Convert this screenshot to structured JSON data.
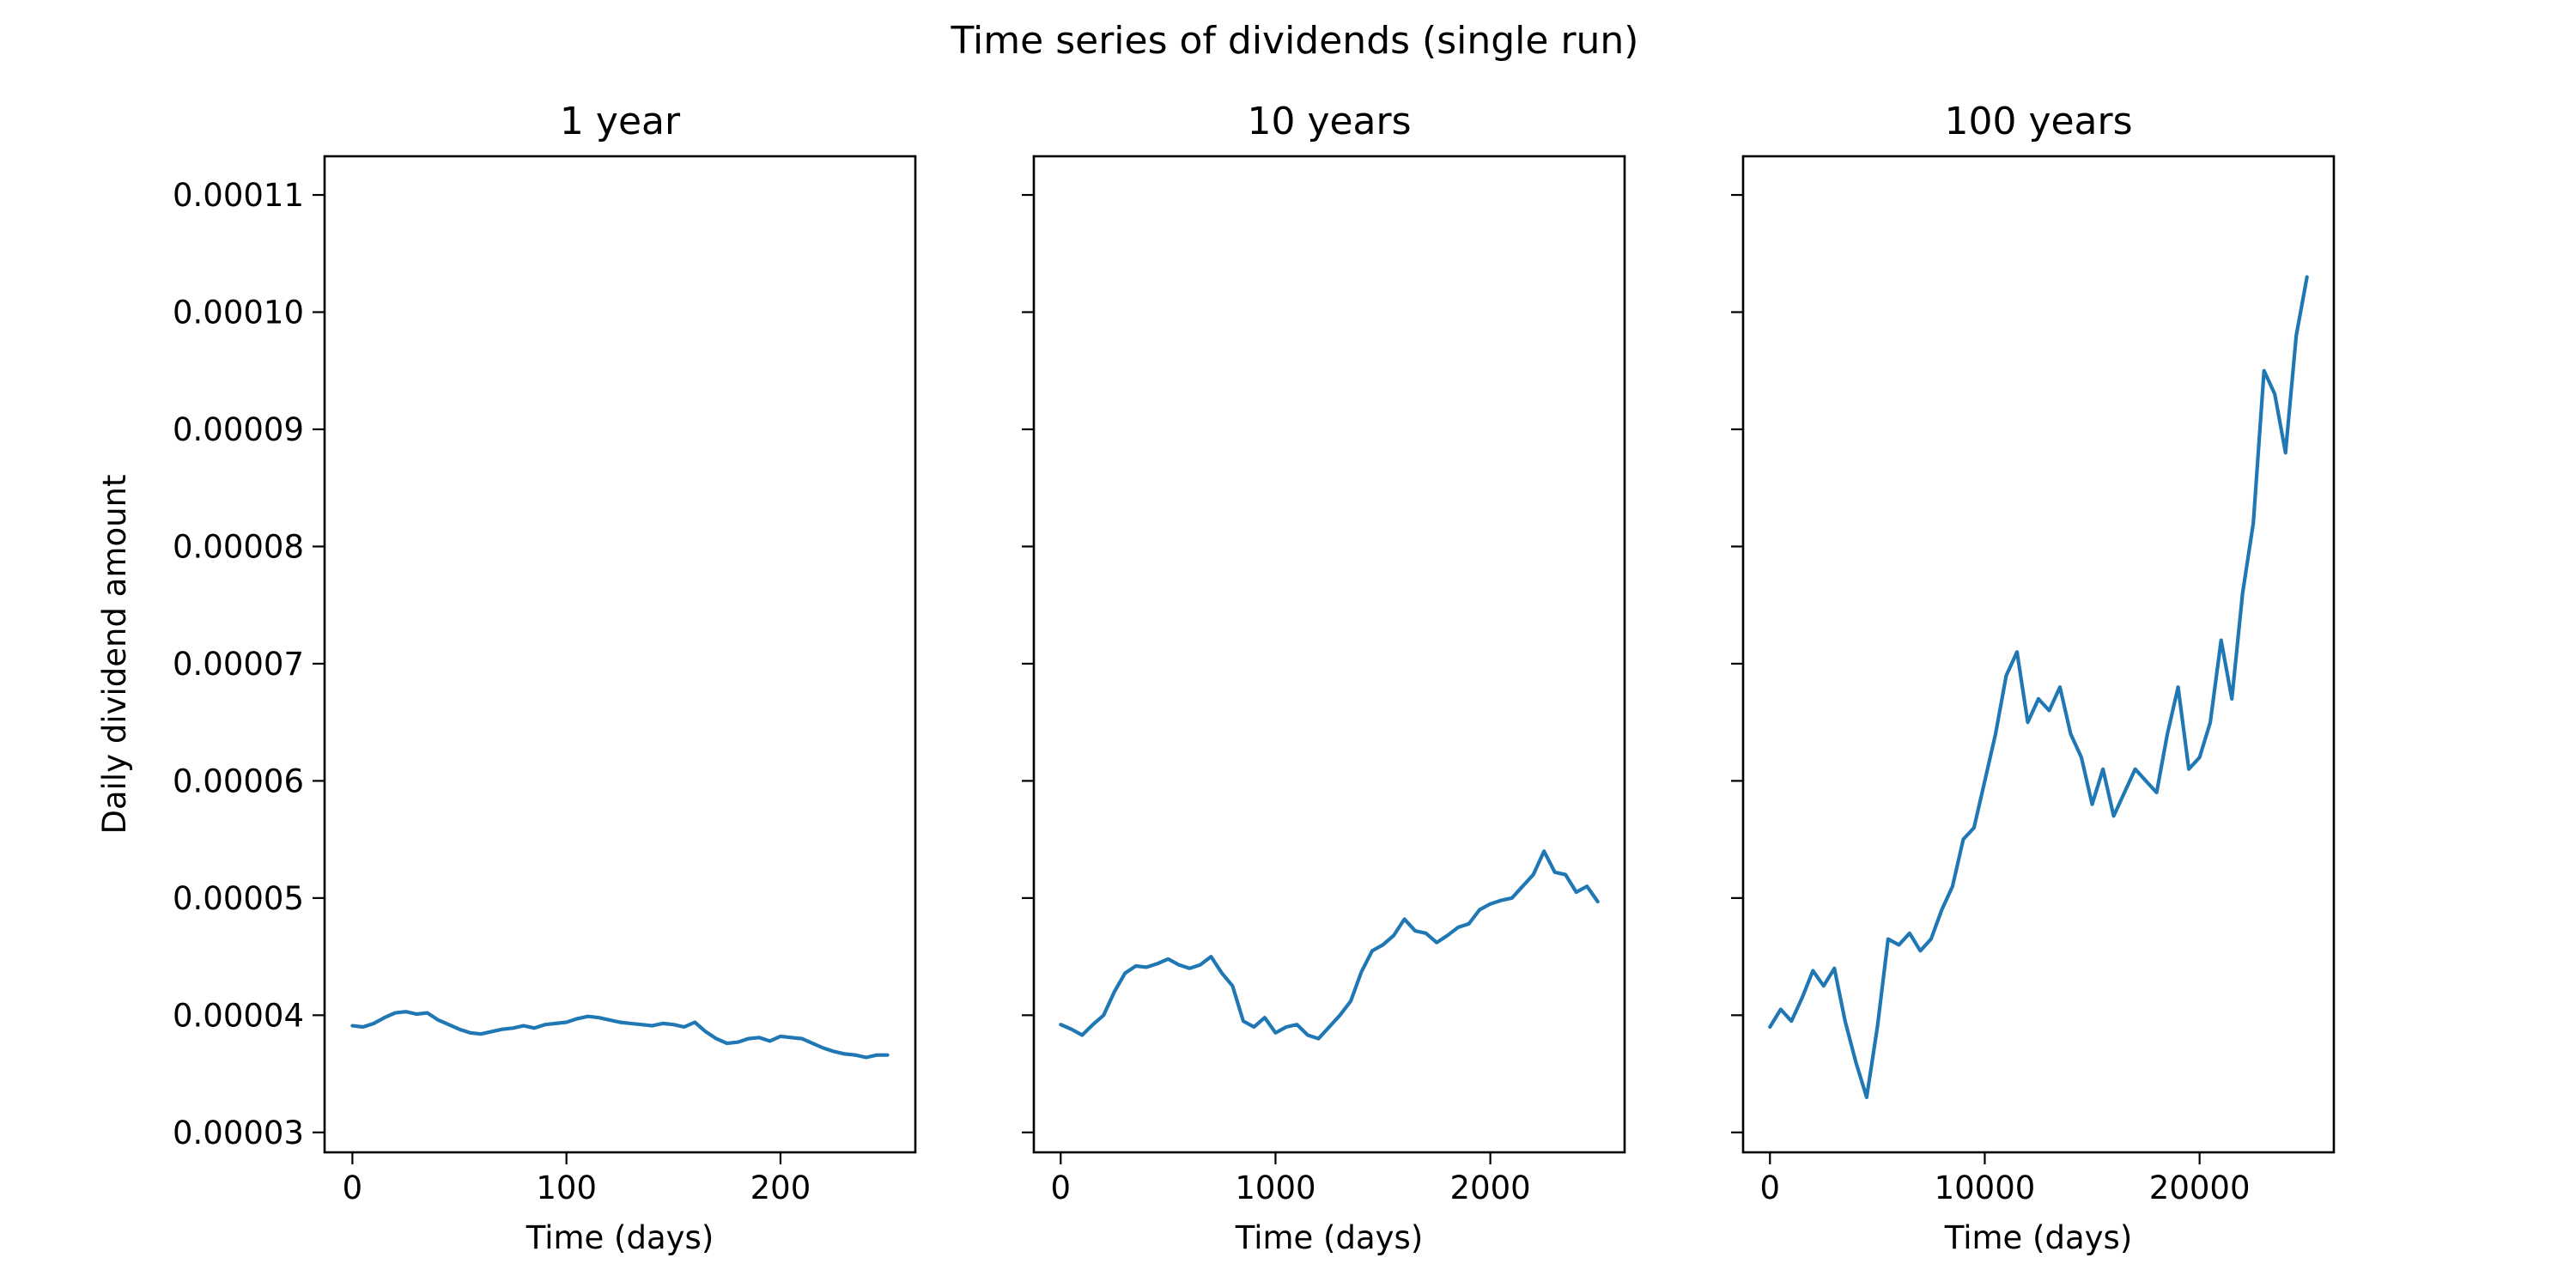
{
  "figure": {
    "title": "Time series of dividends (single run)"
  },
  "chart_data": [
    {
      "type": "line",
      "title": "1 year",
      "xlabel": "Time (days)",
      "ylabel": "Daily dividend amount",
      "xlim": [
        -13,
        263
      ],
      "ylim": [
        2.83e-05,
        0.0001133
      ],
      "xticks": [
        0,
        100,
        200
      ],
      "xtick_labels": [
        "0",
        "100",
        "200"
      ],
      "yticks": [
        3e-05,
        4e-05,
        5e-05,
        6e-05,
        7e-05,
        8e-05,
        9e-05,
        0.0001,
        0.00011
      ],
      "ytick_labels": [
        "0.00003",
        "0.00004",
        "0.00005",
        "0.00006",
        "0.00007",
        "0.00008",
        "0.00009",
        "0.00010",
        "0.00011"
      ],
      "grid": false,
      "series": [
        {
          "x": [
            0,
            5,
            10,
            15,
            20,
            25,
            30,
            35,
            40,
            45,
            50,
            55,
            60,
            65,
            70,
            75,
            80,
            85,
            90,
            95,
            100,
            105,
            110,
            115,
            120,
            125,
            130,
            135,
            140,
            145,
            150,
            155,
            160,
            165,
            170,
            175,
            180,
            185,
            190,
            195,
            200,
            205,
            210,
            215,
            220,
            225,
            230,
            235,
            240,
            245,
            250
          ],
          "values": [
            3.91e-05,
            3.9e-05,
            3.93e-05,
            3.98e-05,
            4.02e-05,
            4.03e-05,
            4.01e-05,
            4.02e-05,
            3.96e-05,
            3.92e-05,
            3.88e-05,
            3.85e-05,
            3.84e-05,
            3.86e-05,
            3.88e-05,
            3.89e-05,
            3.91e-05,
            3.89e-05,
            3.92e-05,
            3.93e-05,
            3.94e-05,
            3.97e-05,
            3.99e-05,
            3.98e-05,
            3.96e-05,
            3.94e-05,
            3.93e-05,
            3.92e-05,
            3.91e-05,
            3.93e-05,
            3.92e-05,
            3.9e-05,
            3.94e-05,
            3.86e-05,
            3.8e-05,
            3.76e-05,
            3.77e-05,
            3.8e-05,
            3.81e-05,
            3.78e-05,
            3.82e-05,
            3.81e-05,
            3.8e-05,
            3.76e-05,
            3.72e-05,
            3.69e-05,
            3.67e-05,
            3.66e-05,
            3.64e-05,
            3.66e-05,
            3.66e-05
          ]
        }
      ]
    },
    {
      "type": "line",
      "title": "10 years",
      "xlabel": "Time (days)",
      "ylabel": "",
      "xlim": [
        -125,
        2625
      ],
      "ylim": [
        2.83e-05,
        0.0001133
      ],
      "xticks": [
        0,
        1000,
        2000
      ],
      "xtick_labels": [
        "0",
        "1000",
        "2000"
      ],
      "yticks": [
        3e-05,
        4e-05,
        5e-05,
        6e-05,
        7e-05,
        8e-05,
        9e-05,
        0.0001,
        0.00011
      ],
      "ytick_labels": [],
      "grid": false,
      "series": [
        {
          "x": [
            0,
            50,
            100,
            150,
            200,
            250,
            300,
            350,
            400,
            450,
            500,
            550,
            600,
            650,
            700,
            750,
            800,
            850,
            900,
            950,
            1000,
            1050,
            1100,
            1150,
            1200,
            1250,
            1300,
            1350,
            1400,
            1450,
            1500,
            1550,
            1600,
            1650,
            1700,
            1750,
            1800,
            1850,
            1900,
            1950,
            2000,
            2050,
            2100,
            2150,
            2200,
            2250,
            2300,
            2350,
            2400,
            2450,
            2500
          ],
          "values": [
            3.92e-05,
            3.88e-05,
            3.83e-05,
            3.92e-05,
            4e-05,
            4.2e-05,
            4.36e-05,
            4.42e-05,
            4.41e-05,
            4.44e-05,
            4.48e-05,
            4.43e-05,
            4.4e-05,
            4.43e-05,
            4.5e-05,
            4.36e-05,
            4.25e-05,
            3.95e-05,
            3.9e-05,
            3.98e-05,
            3.85e-05,
            3.9e-05,
            3.92e-05,
            3.83e-05,
            3.8e-05,
            3.9e-05,
            4e-05,
            4.12e-05,
            4.37e-05,
            4.55e-05,
            4.6e-05,
            4.68e-05,
            4.82e-05,
            4.72e-05,
            4.7e-05,
            4.62e-05,
            4.68e-05,
            4.75e-05,
            4.78e-05,
            4.9e-05,
            4.95e-05,
            4.98e-05,
            5e-05,
            5.1e-05,
            5.2e-05,
            5.4e-05,
            5.22e-05,
            5.2e-05,
            5.05e-05,
            5.1e-05,
            4.97e-05
          ]
        }
      ]
    },
    {
      "type": "line",
      "title": "100 years",
      "xlabel": "Time (days)",
      "ylabel": "",
      "xlim": [
        -1250,
        26250
      ],
      "ylim": [
        2.83e-05,
        0.0001133
      ],
      "xticks": [
        0,
        10000,
        20000
      ],
      "xtick_labels": [
        "0",
        "10000",
        "20000"
      ],
      "yticks": [
        3e-05,
        4e-05,
        5e-05,
        6e-05,
        7e-05,
        8e-05,
        9e-05,
        0.0001,
        0.00011
      ],
      "ytick_labels": [],
      "grid": false,
      "series": [
        {
          "x": [
            0,
            500,
            1000,
            1500,
            2000,
            2500,
            3000,
            3500,
            4000,
            4500,
            5000,
            5500,
            6000,
            6500,
            7000,
            7500,
            8000,
            8500,
            9000,
            9500,
            10000,
            10500,
            11000,
            11500,
            12000,
            12500,
            13000,
            13500,
            14000,
            14500,
            15000,
            15500,
            16000,
            16500,
            17000,
            17500,
            18000,
            18500,
            19000,
            19500,
            20000,
            20500,
            21000,
            21500,
            22000,
            22500,
            23000,
            23500,
            24000,
            24500,
            25000
          ],
          "values": [
            3.9e-05,
            4.05e-05,
            3.95e-05,
            4.15e-05,
            4.38e-05,
            4.25e-05,
            4.4e-05,
            3.95e-05,
            3.6e-05,
            3.3e-05,
            3.9e-05,
            4.65e-05,
            4.6e-05,
            4.7e-05,
            4.55e-05,
            4.65e-05,
            4.9e-05,
            5.1e-05,
            5.5e-05,
            5.6e-05,
            6e-05,
            6.4e-05,
            6.9e-05,
            7.1e-05,
            6.5e-05,
            6.7e-05,
            6.6e-05,
            6.8e-05,
            6.4e-05,
            6.2e-05,
            5.8e-05,
            6.1e-05,
            5.7e-05,
            5.9e-05,
            6.1e-05,
            6e-05,
            5.9e-05,
            6.4e-05,
            6.8e-05,
            6.1e-05,
            6.2e-05,
            6.5e-05,
            7.2e-05,
            6.7e-05,
            7.6e-05,
            8.2e-05,
            9.5e-05,
            9.3e-05,
            8.8e-05,
            9.8e-05,
            0.000103
          ]
        }
      ]
    }
  ]
}
